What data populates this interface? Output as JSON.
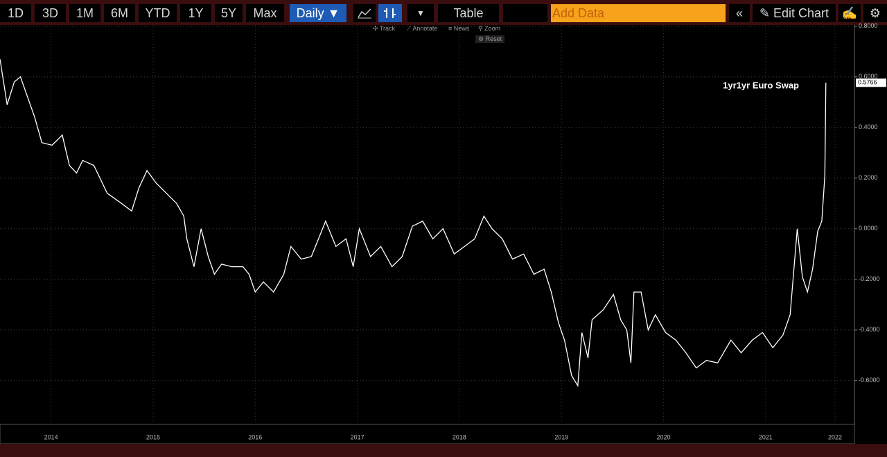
{
  "toolbar": {
    "ranges": [
      "1D",
      "3D",
      "1M",
      "6M",
      "YTD",
      "1Y",
      "5Y",
      "Max"
    ],
    "frequency": "Daily ▼",
    "table": "Table",
    "add_data": "Add Data",
    "edit_chart": "Edit Chart",
    "tools": [
      "Track",
      "Annotate",
      "News",
      "Zoom"
    ],
    "reset": "Reset"
  },
  "chart_data": {
    "type": "line",
    "x": [
      2014.0,
      2014.07,
      2014.14,
      2014.2,
      2014.27,
      2014.34,
      2014.41,
      2014.51,
      2014.61,
      2014.68,
      2014.75,
      2014.81,
      2014.92,
      2015.05,
      2015.19,
      2015.29,
      2015.36,
      2015.44,
      2015.53,
      2015.63,
      2015.73,
      2015.8,
      2015.83,
      2015.9,
      2015.97,
      2016.04,
      2016.1,
      2016.17,
      2016.27,
      2016.38,
      2016.44,
      2016.5,
      2016.58,
      2016.68,
      2016.78,
      2016.85,
      2016.95,
      2017.05,
      2017.19,
      2017.29,
      2017.39,
      2017.46,
      2017.52,
      2017.63,
      2017.73,
      2017.84,
      2017.94,
      2018.04,
      2018.14,
      2018.24,
      2018.34,
      2018.45,
      2018.55,
      2018.65,
      2018.74,
      2018.82,
      2018.92,
      2019.02,
      2019.13,
      2019.23,
      2019.33,
      2019.4,
      2019.47,
      2019.53,
      2019.6,
      2019.66,
      2019.7,
      2019.76,
      2019.8,
      2019.91,
      2020.01,
      2020.08,
      2020.14,
      2020.18,
      2020.21,
      2020.28,
      2020.35,
      2020.42,
      2020.52,
      2020.62,
      2020.72,
      2020.82,
      2020.92,
      2021.03,
      2021.16,
      2021.26,
      2021.37,
      2021.47,
      2021.57,
      2021.67,
      2021.74,
      2021.81,
      2021.86,
      2021.91,
      2021.96,
      2022.01,
      2022.05,
      2022.08,
      2022.09
    ],
    "series": [
      {
        "name": "1yr1yr Euro Swap",
        "color": "#ffffff",
        "values": [
          0.67,
          0.49,
          0.58,
          0.6,
          0.52,
          0.44,
          0.34,
          0.33,
          0.37,
          0.25,
          0.22,
          0.27,
          0.25,
          0.14,
          0.1,
          0.07,
          0.16,
          0.23,
          0.18,
          0.14,
          0.1,
          0.05,
          -0.04,
          -0.15,
          0.0,
          -0.11,
          -0.18,
          -0.14,
          -0.15,
          -0.15,
          -0.18,
          -0.25,
          -0.21,
          -0.25,
          -0.18,
          -0.07,
          -0.12,
          -0.11,
          0.03,
          -0.07,
          -0.04,
          -0.15,
          0.0,
          -0.11,
          -0.07,
          -0.15,
          -0.11,
          0.01,
          0.03,
          -0.04,
          0.0,
          -0.1,
          -0.07,
          -0.04,
          0.05,
          0.0,
          -0.04,
          -0.12,
          -0.1,
          -0.18,
          -0.16,
          -0.25,
          -0.37,
          -0.44,
          -0.58,
          -0.62,
          -0.41,
          -0.51,
          -0.36,
          -0.32,
          -0.26,
          -0.36,
          -0.4,
          -0.53,
          -0.25,
          -0.25,
          -0.4,
          -0.34,
          -0.41,
          -0.44,
          -0.49,
          -0.55,
          -0.52,
          -0.53,
          -0.44,
          -0.49,
          -0.44,
          -0.41,
          -0.47,
          -0.42,
          -0.34,
          0.0,
          -0.19,
          -0.25,
          -0.16,
          -0.01,
          0.03,
          0.21,
          0.5766
        ]
      }
    ],
    "xlim": [
      2014.0,
      2022.37
    ],
    "xticks": [
      {
        "value": 2014.5,
        "label": "2014"
      },
      {
        "value": 2015.5,
        "label": "2015"
      },
      {
        "value": 2016.5,
        "label": "2016"
      },
      {
        "value": 2017.5,
        "label": "2017"
      },
      {
        "value": 2018.5,
        "label": "2018"
      },
      {
        "value": 2019.5,
        "label": "2019"
      },
      {
        "value": 2020.5,
        "label": "2020"
      },
      {
        "value": 2021.5,
        "label": "2021"
      },
      {
        "value": 2022.18,
        "label": "2022"
      }
    ],
    "ylim": [
      -0.773,
      0.805
    ],
    "yticks": [
      {
        "value": 0.8,
        "label": "0.8000"
      },
      {
        "value": 0.6,
        "label": "0.6000"
      },
      {
        "value": 0.4,
        "label": "0.4000"
      },
      {
        "value": 0.2,
        "label": "0.2000"
      },
      {
        "value": 0,
        "label": "0.0000"
      },
      {
        "value": -0.2,
        "label": "-0.2000"
      },
      {
        "value": -0.4,
        "label": "-0.4000"
      },
      {
        "value": -0.6,
        "label": "-0.6000"
      }
    ],
    "grid": true
  }
}
